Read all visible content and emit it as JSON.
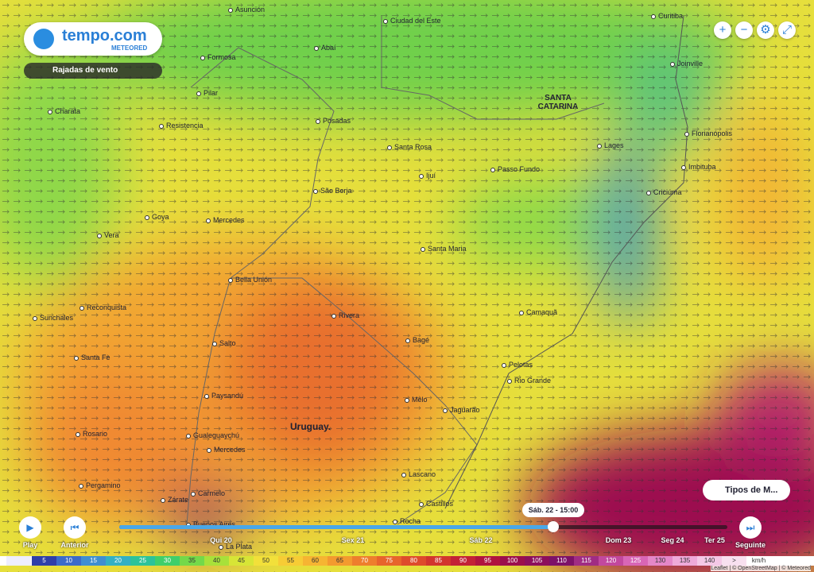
{
  "header": {
    "brand": "tempo.com",
    "sub": "METEORED"
  },
  "layer": "Rajadas de vento",
  "map": {
    "places": [
      "Asunción",
      "Ciudad del Este",
      "Curitiba",
      "Formosa",
      "Abaí",
      "Joinville",
      "Pilar",
      "Charata",
      "Resistencia",
      "Posadas",
      "Florianópolis",
      "Lages",
      "Santa Rosa",
      "Passo Fundo",
      "Imbituba",
      "Ijuí",
      "Criciúma",
      "São Borja",
      "Goya",
      "Mercedes",
      "Vera",
      "Santa Maria",
      "Bella Unión",
      "Camaquã",
      "Reconquista",
      "Sunchales",
      "Rivera",
      "Salto",
      "Bagé",
      "Santa Fe",
      "Pelotas",
      "Rio Grande",
      "Paysandú",
      "Melo",
      "Jaguarão",
      "Rosario",
      "Gualeguaychú",
      "Mercedes",
      "Lascano",
      "Carmelo",
      "Pergamino",
      "Zárate",
      "Castillos",
      "Buenos Aires",
      "La Plata",
      "Rocha"
    ],
    "regions": [
      "SANTA CATARINA",
      "Uruguay."
    ]
  },
  "layers_button": "Tipos de M...",
  "timeline": {
    "play": "Play",
    "previous": "Anterior",
    "next": "Seguinte",
    "current": "Sáb. 22 - 15:00",
    "days": [
      "Qui 20",
      "Sex 21",
      "Sáb 22",
      "Dom 23",
      "Seg 24",
      "Ter 25"
    ]
  },
  "legend": {
    "values": [
      5,
      10,
      15,
      20,
      25,
      30,
      35,
      40,
      45,
      50,
      55,
      60,
      65,
      70,
      75,
      80,
      85,
      90,
      95,
      100,
      105,
      110,
      115,
      120,
      125,
      130,
      135,
      140
    ],
    "colors": [
      "#2f3fa8",
      "#3b6bc9",
      "#3f8fd1",
      "#33b0c4",
      "#2cc39a",
      "#3fcf6b",
      "#73d94a",
      "#a8e13a",
      "#d7e536",
      "#f2e03a",
      "#f7cc35",
      "#f6b432",
      "#f39a2f",
      "#ee7e2d",
      "#e7642c",
      "#de4b2c",
      "#d2352e",
      "#c32236",
      "#b0143f",
      "#9b0f4c",
      "#8c0f5c",
      "#7d1168",
      "#a02c84",
      "#c2489e",
      "#d866b6",
      "#e487c9",
      "#eeaad9",
      "#f4c8e6"
    ],
    "more": ">",
    "unit": "km/h"
  },
  "attribution": "Leaflet | © OpenStreetMap | © Meteored"
}
